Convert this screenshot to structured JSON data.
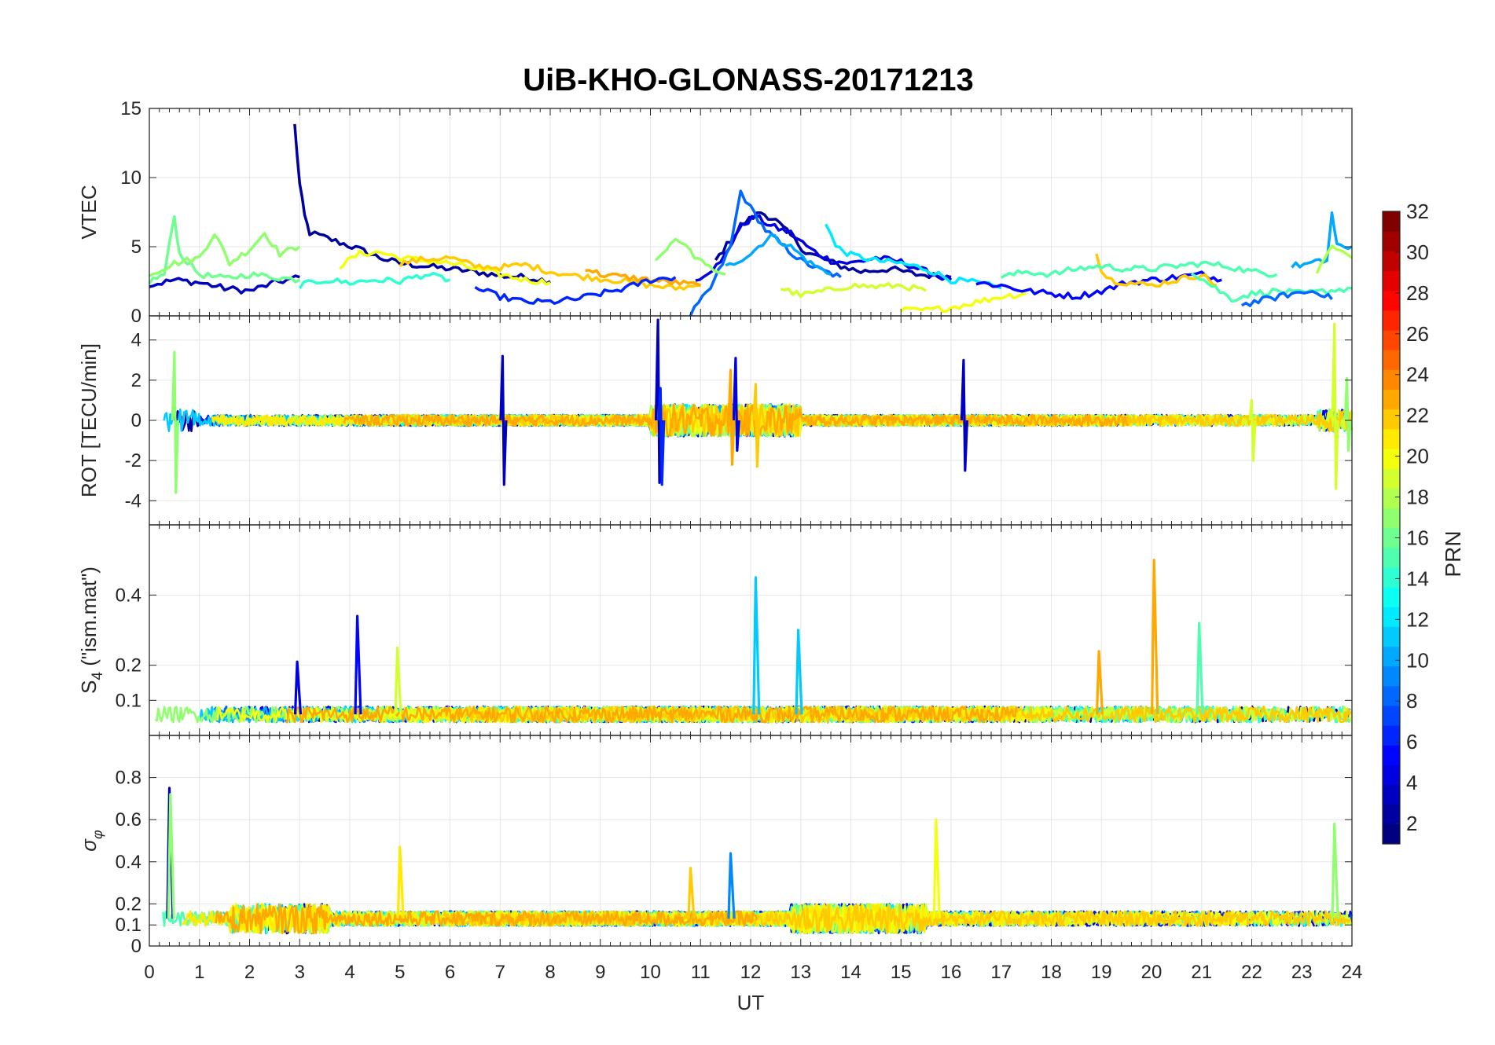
{
  "title": "UiB-KHO-GLONASS-20171213",
  "xlabel": "UT",
  "x_ticks": [
    0,
    1,
    2,
    3,
    4,
    5,
    6,
    7,
    8,
    9,
    10,
    11,
    12,
    13,
    14,
    15,
    16,
    17,
    18,
    19,
    20,
    21,
    22,
    23,
    24
  ],
  "colorbar": {
    "label": "PRN",
    "range": [
      1,
      32
    ],
    "ticks": [
      2,
      4,
      6,
      8,
      10,
      12,
      14,
      16,
      18,
      20,
      22,
      24,
      26,
      28,
      30,
      32
    ],
    "colormap": "jet",
    "steps": 32
  },
  "chart_data": [
    {
      "type": "line",
      "panel": "vtec",
      "ylabel": "VTEC",
      "xlim": [
        0,
        24
      ],
      "ylim": [
        0,
        15
      ],
      "yticks": [
        0,
        5,
        10,
        15
      ],
      "grid": true,
      "series": [
        {
          "prn": 2,
          "points": [
            [
              2.9,
              13.8
            ],
            [
              3.0,
              9.5
            ],
            [
              3.1,
              7.2
            ],
            [
              3.2,
              6.0
            ],
            [
              3.4,
              5.8
            ],
            [
              3.8,
              5.3
            ],
            [
              4.2,
              4.8
            ],
            [
              4.6,
              4.2
            ],
            [
              5.0,
              3.8
            ],
            [
              5.5,
              3.6
            ],
            [
              6.0,
              3.4
            ],
            [
              6.5,
              3.2
            ],
            [
              7.0,
              2.9
            ],
            [
              7.5,
              2.8
            ],
            [
              8.0,
              2.5
            ]
          ]
        },
        {
          "prn": 3,
          "points": [
            [
              0.0,
              2.2
            ],
            [
              0.5,
              2.6
            ],
            [
              1.0,
              2.4
            ],
            [
              1.5,
              2.0
            ],
            [
              2.0,
              1.8
            ],
            [
              2.5,
              2.4
            ],
            [
              3.0,
              2.8
            ]
          ]
        },
        {
          "prn": 2,
          "points": [
            [
              11.3,
              4.0
            ],
            [
              11.6,
              5.5
            ],
            [
              11.9,
              6.8
            ],
            [
              12.2,
              7.5
            ],
            [
              12.5,
              6.9
            ],
            [
              12.8,
              5.8
            ],
            [
              13.1,
              4.6
            ],
            [
              13.4,
              4.2
            ],
            [
              13.8,
              3.6
            ],
            [
              14.2,
              3.2
            ],
            [
              14.8,
              3.4
            ],
            [
              15.3,
              3.0
            ],
            [
              16.0,
              2.8
            ]
          ]
        },
        {
          "prn": 4,
          "points": [
            [
              10.9,
              2.6
            ],
            [
              11.4,
              3.8
            ],
            [
              11.8,
              6.5
            ],
            [
              12.1,
              7.2
            ],
            [
              12.4,
              6.5
            ],
            [
              12.8,
              6.0
            ],
            [
              13.2,
              4.8
            ],
            [
              13.6,
              4.0
            ],
            [
              14.0,
              3.8
            ],
            [
              14.5,
              4.2
            ],
            [
              15.0,
              3.9
            ],
            [
              15.5,
              3.2
            ],
            [
              16.0,
              2.6
            ]
          ]
        },
        {
          "prn": 8,
          "points": [
            [
              10.8,
              0.1
            ],
            [
              11.2,
              2.0
            ],
            [
              11.6,
              5.0
            ],
            [
              11.8,
              9.0
            ],
            [
              12.0,
              7.8
            ],
            [
              12.3,
              6.2
            ],
            [
              12.6,
              5.2
            ],
            [
              13.0,
              4.0
            ],
            [
              13.4,
              3.3
            ],
            [
              13.8,
              2.8
            ]
          ]
        },
        {
          "prn": 10,
          "points": [
            [
              11.5,
              3.5
            ],
            [
              12.0,
              4.5
            ],
            [
              12.4,
              5.8
            ],
            [
              12.8,
              5.0
            ],
            [
              13.2,
              3.8
            ],
            [
              13.6,
              3.0
            ]
          ]
        },
        {
          "prn": 12,
          "points": [
            [
              13.5,
              6.8
            ],
            [
              13.7,
              5.0
            ],
            [
              14.0,
              4.4
            ],
            [
              14.5,
              4.0
            ],
            [
              15.0,
              3.8
            ],
            [
              15.5,
              3.4
            ],
            [
              16.0,
              2.6
            ],
            [
              16.5,
              2.4
            ],
            [
              17.0,
              2.0
            ]
          ]
        },
        {
          "prn": 16,
          "points": [
            [
              0.0,
              2.5
            ],
            [
              0.3,
              3.0
            ],
            [
              0.5,
              7.2
            ],
            [
              0.6,
              4.5
            ],
            [
              1.0,
              3.0
            ],
            [
              1.5,
              2.7
            ],
            [
              2.0,
              3.0
            ],
            [
              2.5,
              2.8
            ],
            [
              3.0,
              2.6
            ]
          ]
        },
        {
          "prn": 17,
          "points": [
            [
              0.0,
              3.0
            ],
            [
              0.5,
              3.8
            ],
            [
              1.0,
              4.2
            ],
            [
              1.3,
              6.0
            ],
            [
              1.6,
              3.8
            ],
            [
              2.0,
              4.8
            ],
            [
              2.3,
              6.0
            ],
            [
              2.6,
              4.5
            ],
            [
              3.0,
              5.0
            ]
          ]
        },
        {
          "prn": 20,
          "points": [
            [
              3.8,
              3.6
            ],
            [
              4.2,
              4.5
            ],
            [
              4.6,
              4.6
            ],
            [
              5.0,
              4.2
            ],
            [
              5.5,
              4.0
            ],
            [
              6.0,
              3.8
            ],
            [
              6.5,
              3.4
            ],
            [
              7.0,
              3.0
            ],
            [
              7.5,
              2.6
            ],
            [
              8.0,
              2.4
            ]
          ]
        },
        {
          "prn": 22,
          "points": [
            [
              5.0,
              3.8
            ],
            [
              5.5,
              4.1
            ],
            [
              6.0,
              4.2
            ],
            [
              6.5,
              3.6
            ],
            [
              7.0,
              3.5
            ],
            [
              7.5,
              3.7
            ],
            [
              8.0,
              3.2
            ],
            [
              8.5,
              2.9
            ],
            [
              9.0,
              2.7
            ],
            [
              9.5,
              2.5
            ],
            [
              10.0,
              2.2
            ],
            [
              10.5,
              2.0
            ],
            [
              11.0,
              2.2
            ]
          ]
        },
        {
          "prn": 23,
          "points": [
            [
              8.7,
              3.5
            ],
            [
              9.0,
              3.0
            ],
            [
              9.5,
              2.8
            ],
            [
              10.0,
              2.6
            ],
            [
              10.5,
              2.4
            ],
            [
              11.0,
              2.2
            ]
          ]
        },
        {
          "prn": 14,
          "points": [
            [
              3.0,
              2.2
            ],
            [
              3.5,
              2.6
            ],
            [
              4.0,
              2.4
            ],
            [
              4.5,
              2.6
            ],
            [
              5.0,
              2.5
            ],
            [
              5.5,
              3.0
            ],
            [
              6.0,
              2.6
            ]
          ]
        },
        {
          "prn": 6,
          "points": [
            [
              6.5,
              2.0
            ],
            [
              7.0,
              1.4
            ],
            [
              7.5,
              1.0
            ],
            [
              8.0,
              1.0
            ],
            [
              8.5,
              1.2
            ],
            [
              9.0,
              1.6
            ],
            [
              9.5,
              2.0
            ],
            [
              10.0,
              2.6
            ],
            [
              10.5,
              2.8
            ]
          ]
        },
        {
          "prn": 17,
          "points": [
            [
              10.1,
              4.0
            ],
            [
              10.4,
              5.2
            ],
            [
              10.6,
              5.5
            ],
            [
              10.8,
              4.6
            ],
            [
              11.1,
              3.6
            ],
            [
              11.5,
              3.0
            ]
          ]
        },
        {
          "prn": 19,
          "points": [
            [
              12.6,
              2.0
            ],
            [
              13.0,
              1.5
            ],
            [
              13.5,
              1.8
            ],
            [
              14.0,
              2.2
            ],
            [
              14.5,
              2.1
            ],
            [
              15.0,
              2.2
            ],
            [
              15.5,
              1.8
            ]
          ]
        },
        {
          "prn": 20,
          "points": [
            [
              15.0,
              0.4
            ],
            [
              15.5,
              0.4
            ],
            [
              16.0,
              0.6
            ],
            [
              16.5,
              1.0
            ],
            [
              17.0,
              1.4
            ],
            [
              17.5,
              1.6
            ]
          ]
        },
        {
          "prn": 5,
          "points": [
            [
              16.5,
              2.4
            ],
            [
              17.0,
              2.2
            ],
            [
              17.5,
              1.8
            ],
            [
              18.0,
              1.6
            ],
            [
              18.5,
              1.4
            ],
            [
              19.0,
              1.8
            ],
            [
              19.5,
              2.4
            ],
            [
              20.0,
              2.6
            ],
            [
              20.5,
              2.8
            ],
            [
              21.0,
              3.0
            ],
            [
              21.4,
              2.6
            ]
          ]
        },
        {
          "prn": 22,
          "points": [
            [
              18.9,
              4.7
            ],
            [
              19.0,
              3.2
            ],
            [
              19.2,
              2.6
            ],
            [
              19.5,
              2.4
            ],
            [
              20.0,
              2.2
            ],
            [
              20.5,
              2.6
            ],
            [
              21.0,
              3.0
            ],
            [
              21.3,
              2.2
            ]
          ]
        },
        {
          "prn": 15,
          "points": [
            [
              17.0,
              2.8
            ],
            [
              17.5,
              3.2
            ],
            [
              18.0,
              3.0
            ],
            [
              18.5,
              3.4
            ],
            [
              19.0,
              3.6
            ],
            [
              19.5,
              3.4
            ],
            [
              20.0,
              3.4
            ],
            [
              20.5,
              3.6
            ],
            [
              21.0,
              3.8
            ],
            [
              21.5,
              3.6
            ],
            [
              22.0,
              3.2
            ],
            [
              22.5,
              3.0
            ]
          ]
        },
        {
          "prn": 15,
          "points": [
            [
              20.8,
              3.2
            ],
            [
              21.2,
              2.2
            ],
            [
              21.6,
              1.2
            ],
            [
              22.0,
              1.6
            ],
            [
              22.5,
              1.8
            ],
            [
              23.0,
              1.6
            ],
            [
              23.5,
              1.8
            ],
            [
              24.0,
              2.0
            ]
          ]
        },
        {
          "prn": 10,
          "points": [
            [
              22.8,
              3.6
            ],
            [
              23.2,
              3.8
            ],
            [
              23.5,
              4.0
            ],
            [
              23.6,
              7.4
            ],
            [
              23.7,
              5.0
            ],
            [
              24.0,
              5.0
            ]
          ]
        },
        {
          "prn": 8,
          "points": [
            [
              21.8,
              0.8
            ],
            [
              22.3,
              1.2
            ],
            [
              22.8,
              1.6
            ],
            [
              23.3,
              1.8
            ],
            [
              23.6,
              1.2
            ]
          ]
        },
        {
          "prn": 18,
          "points": [
            [
              23.3,
              3.2
            ],
            [
              23.6,
              5.0
            ],
            [
              23.8,
              4.6
            ],
            [
              24.0,
              4.2
            ]
          ]
        }
      ]
    },
    {
      "type": "line",
      "panel": "rot",
      "ylabel": "ROT [TECU/min]",
      "xlim": [
        0,
        24
      ],
      "ylim": [
        -5.2,
        5.2
      ],
      "yticks": [
        -4,
        -2,
        0,
        2,
        4
      ],
      "grid": true,
      "spikes": [
        {
          "prn": 17,
          "x": 0.5,
          "hi": 3.4,
          "lo": -3.6
        },
        {
          "prn": 3,
          "x": 7.05,
          "hi": 3.2,
          "lo": -3.2
        },
        {
          "prn": 3,
          "x": 10.15,
          "hi": 5.0,
          "lo": -3.1
        },
        {
          "prn": 6,
          "x": 10.2,
          "hi": 1.6,
          "lo": -3.2
        },
        {
          "prn": 4,
          "x": 11.7,
          "hi": 3.1,
          "lo": -1.5
        },
        {
          "prn": 23,
          "x": 11.6,
          "hi": 2.5,
          "lo": -2.2
        },
        {
          "prn": 22,
          "x": 12.1,
          "hi": 1.8,
          "lo": -2.3
        },
        {
          "prn": 3,
          "x": 16.25,
          "hi": 3.0,
          "lo": -2.5
        },
        {
          "prn": 19,
          "x": 22.0,
          "hi": 1.0,
          "lo": -2.0
        },
        {
          "prn": 19,
          "x": 23.65,
          "hi": 4.8,
          "lo": -3.4
        },
        {
          "prn": 17,
          "x": 23.9,
          "hi": 2.1,
          "lo": -1.5
        }
      ]
    },
    {
      "type": "line",
      "panel": "s4",
      "ylabel": "S4 (\"ism.mat\")",
      "xlim": [
        0,
        24
      ],
      "ylim": [
        0,
        0.6
      ],
      "yticks": [
        0.1,
        0.2,
        0.4
      ],
      "grid": true,
      "spikes": [
        {
          "prn": 4,
          "x": 2.95,
          "hi": 0.21
        },
        {
          "prn": 5,
          "x": 4.15,
          "hi": 0.34
        },
        {
          "prn": 19,
          "x": 4.95,
          "hi": 0.25
        },
        {
          "prn": 11,
          "x": 12.1,
          "hi": 0.45
        },
        {
          "prn": 11,
          "x": 12.95,
          "hi": 0.3
        },
        {
          "prn": 23,
          "x": 18.95,
          "hi": 0.24
        },
        {
          "prn": 23,
          "x": 20.05,
          "hi": 0.5
        },
        {
          "prn": 15,
          "x": 20.95,
          "hi": 0.32
        }
      ]
    },
    {
      "type": "line",
      "panel": "sigma_phi",
      "ylabel": "σφ",
      "xlim": [
        0,
        24
      ],
      "ylim": [
        0,
        1
      ],
      "yticks": [
        0,
        0.1,
        0.2,
        0.4,
        0.6,
        0.8
      ],
      "grid": true,
      "spikes": [
        {
          "prn": 3,
          "x": 0.4,
          "hi": 0.75
        },
        {
          "prn": 17,
          "x": 0.42,
          "hi": 0.72
        },
        {
          "prn": 21,
          "x": 5.0,
          "hi": 0.47
        },
        {
          "prn": 9,
          "x": 11.6,
          "hi": 0.44
        },
        {
          "prn": 22,
          "x": 10.8,
          "hi": 0.37
        },
        {
          "prn": 20,
          "x": 15.7,
          "hi": 0.6
        },
        {
          "prn": 17,
          "x": 23.65,
          "hi": 0.58
        }
      ]
    }
  ]
}
